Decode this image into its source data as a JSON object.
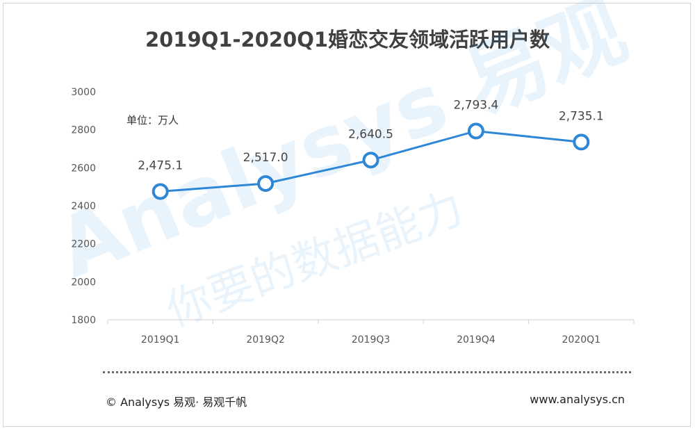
{
  "title": "2019Q1-2020Q1婚恋交友领域活跃用户数",
  "chart_data": {
    "type": "line",
    "unit_label": "单位：万人",
    "categories": [
      "2019Q1",
      "2019Q2",
      "2019Q3",
      "2019Q4",
      "2020Q1"
    ],
    "values": [
      2475.1,
      2517.0,
      2640.5,
      2793.4,
      2735.1
    ],
    "value_labels": [
      "2,475.1",
      "2,517.0",
      "2,640.5",
      "2,793.4",
      "2,735.1"
    ],
    "yticks": [
      "3000",
      "2800",
      "2600",
      "2400",
      "2200",
      "2000",
      "1800"
    ],
    "ylim": [
      1800,
      3000
    ],
    "grid": false,
    "line_color": "#2e86d6",
    "watermark": [
      "Analysys 易观",
      "你要的数据能力"
    ]
  },
  "footer": {
    "left": "© Analysys 易观· 易观千帆",
    "right": "www.analysys.cn"
  }
}
